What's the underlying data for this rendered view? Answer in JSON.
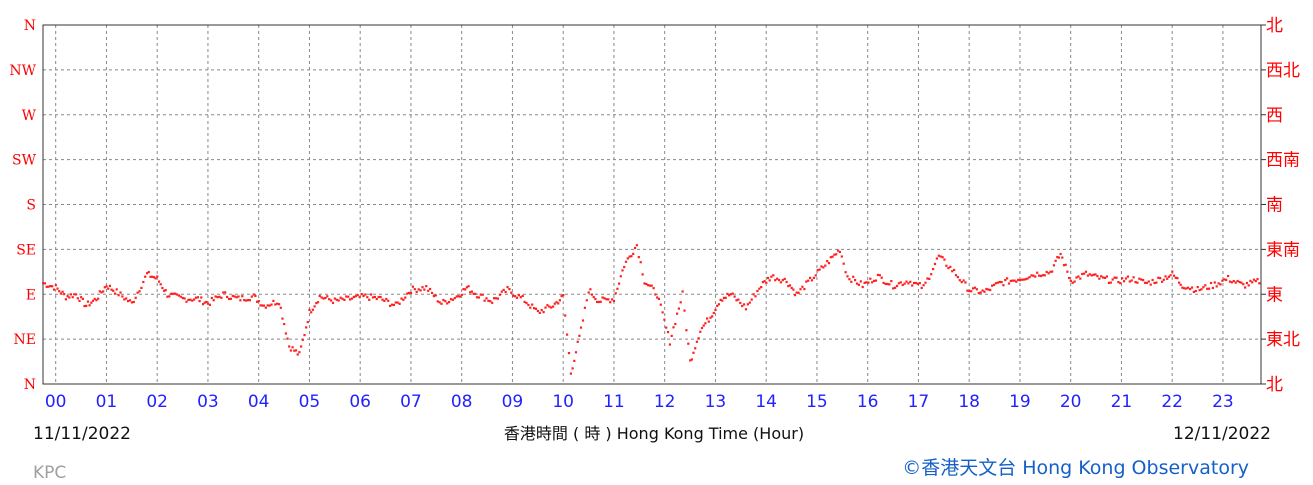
{
  "chart_data": {
    "type": "scatter",
    "title": "",
    "xlabel": "香港時間 ( 時 ) Hong Kong Time (Hour)",
    "ylabel": "",
    "xlim": [
      -0.25,
      23.75
    ],
    "ylim": [
      0,
      8
    ],
    "grid": true,
    "y_ticks_left": [
      "N",
      "NE",
      "E",
      "SE",
      "S",
      "SW",
      "W",
      "NW",
      "N"
    ],
    "y_ticks_right": [
      "北",
      "東北",
      "東",
      "東南",
      "南",
      "西南",
      "西",
      "西北",
      "北"
    ],
    "x_ticks": [
      "00",
      "01",
      "02",
      "03",
      "04",
      "05",
      "06",
      "07",
      "08",
      "09",
      "10",
      "11",
      "12",
      "13",
      "14",
      "15",
      "16",
      "17",
      "18",
      "19",
      "20",
      "21",
      "22",
      "23"
    ],
    "start_date": "11/11/2022",
    "end_date": "12/11/2022",
    "color": "#ff2020",
    "anchors": [
      [
        -0.25,
        2.25
      ],
      [
        0.0,
        2.15
      ],
      [
        0.2,
        1.95
      ],
      [
        0.4,
        2.0
      ],
      [
        0.6,
        1.75
      ],
      [
        0.8,
        1.9
      ],
      [
        1.0,
        2.2
      ],
      [
        1.2,
        2.05
      ],
      [
        1.5,
        1.8
      ],
      [
        1.8,
        2.45
      ],
      [
        2.0,
        2.35
      ],
      [
        2.2,
        2.0
      ],
      [
        2.5,
        1.9
      ],
      [
        2.8,
        1.9
      ],
      [
        3.0,
        1.8
      ],
      [
        3.3,
        2.0
      ],
      [
        3.6,
        1.9
      ],
      [
        3.9,
        1.95
      ],
      [
        4.1,
        1.75
      ],
      [
        4.4,
        1.85
      ],
      [
        4.6,
        0.85
      ],
      [
        4.8,
        0.65
      ],
      [
        5.0,
        1.6
      ],
      [
        5.2,
        1.95
      ],
      [
        5.5,
        1.85
      ],
      [
        5.8,
        1.9
      ],
      [
        6.1,
        1.95
      ],
      [
        6.4,
        1.9
      ],
      [
        6.7,
        1.75
      ],
      [
        7.0,
        2.1
      ],
      [
        7.3,
        2.15
      ],
      [
        7.6,
        1.8
      ],
      [
        7.9,
        1.95
      ],
      [
        8.1,
        2.15
      ],
      [
        8.3,
        2.0
      ],
      [
        8.6,
        1.85
      ],
      [
        8.9,
        2.1
      ],
      [
        9.2,
        1.9
      ],
      [
        9.5,
        1.6
      ],
      [
        9.8,
        1.75
      ],
      [
        10.0,
        1.95
      ],
      [
        10.15,
        0.25
      ],
      [
        10.35,
        1.2
      ],
      [
        10.5,
        2.1
      ],
      [
        10.7,
        1.85
      ],
      [
        11.0,
        1.9
      ],
      [
        11.2,
        2.65
      ],
      [
        11.45,
        3.1
      ],
      [
        11.6,
        2.3
      ],
      [
        11.85,
        2.0
      ],
      [
        12.1,
        0.95
      ],
      [
        12.35,
        2.0
      ],
      [
        12.5,
        0.5
      ],
      [
        12.7,
        1.2
      ],
      [
        12.9,
        1.5
      ],
      [
        13.1,
        1.9
      ],
      [
        13.3,
        2.0
      ],
      [
        13.6,
        1.7
      ],
      [
        13.9,
        2.2
      ],
      [
        14.1,
        2.4
      ],
      [
        14.4,
        2.3
      ],
      [
        14.6,
        2.0
      ],
      [
        14.9,
        2.35
      ],
      [
        15.2,
        2.7
      ],
      [
        15.45,
        3.0
      ],
      [
        15.6,
        2.4
      ],
      [
        15.9,
        2.2
      ],
      [
        16.2,
        2.4
      ],
      [
        16.5,
        2.2
      ],
      [
        16.8,
        2.3
      ],
      [
        17.1,
        2.15
      ],
      [
        17.4,
        2.85
      ],
      [
        17.7,
        2.5
      ],
      [
        18.0,
        2.1
      ],
      [
        18.3,
        2.05
      ],
      [
        18.6,
        2.25
      ],
      [
        19.0,
        2.35
      ],
      [
        19.3,
        2.45
      ],
      [
        19.6,
        2.5
      ],
      [
        19.8,
        2.9
      ],
      [
        20.0,
        2.3
      ],
      [
        20.3,
        2.45
      ],
      [
        20.6,
        2.35
      ],
      [
        20.9,
        2.3
      ],
      [
        21.2,
        2.35
      ],
      [
        21.5,
        2.25
      ],
      [
        21.8,
        2.35
      ],
      [
        22.0,
        2.45
      ],
      [
        22.2,
        2.2
      ],
      [
        22.5,
        2.1
      ],
      [
        22.8,
        2.2
      ],
      [
        23.1,
        2.35
      ],
      [
        23.4,
        2.2
      ],
      [
        23.75,
        2.3
      ]
    ]
  },
  "labels": {
    "site": "KPC",
    "credit": "©香港天文台 Hong Kong Observatory"
  }
}
